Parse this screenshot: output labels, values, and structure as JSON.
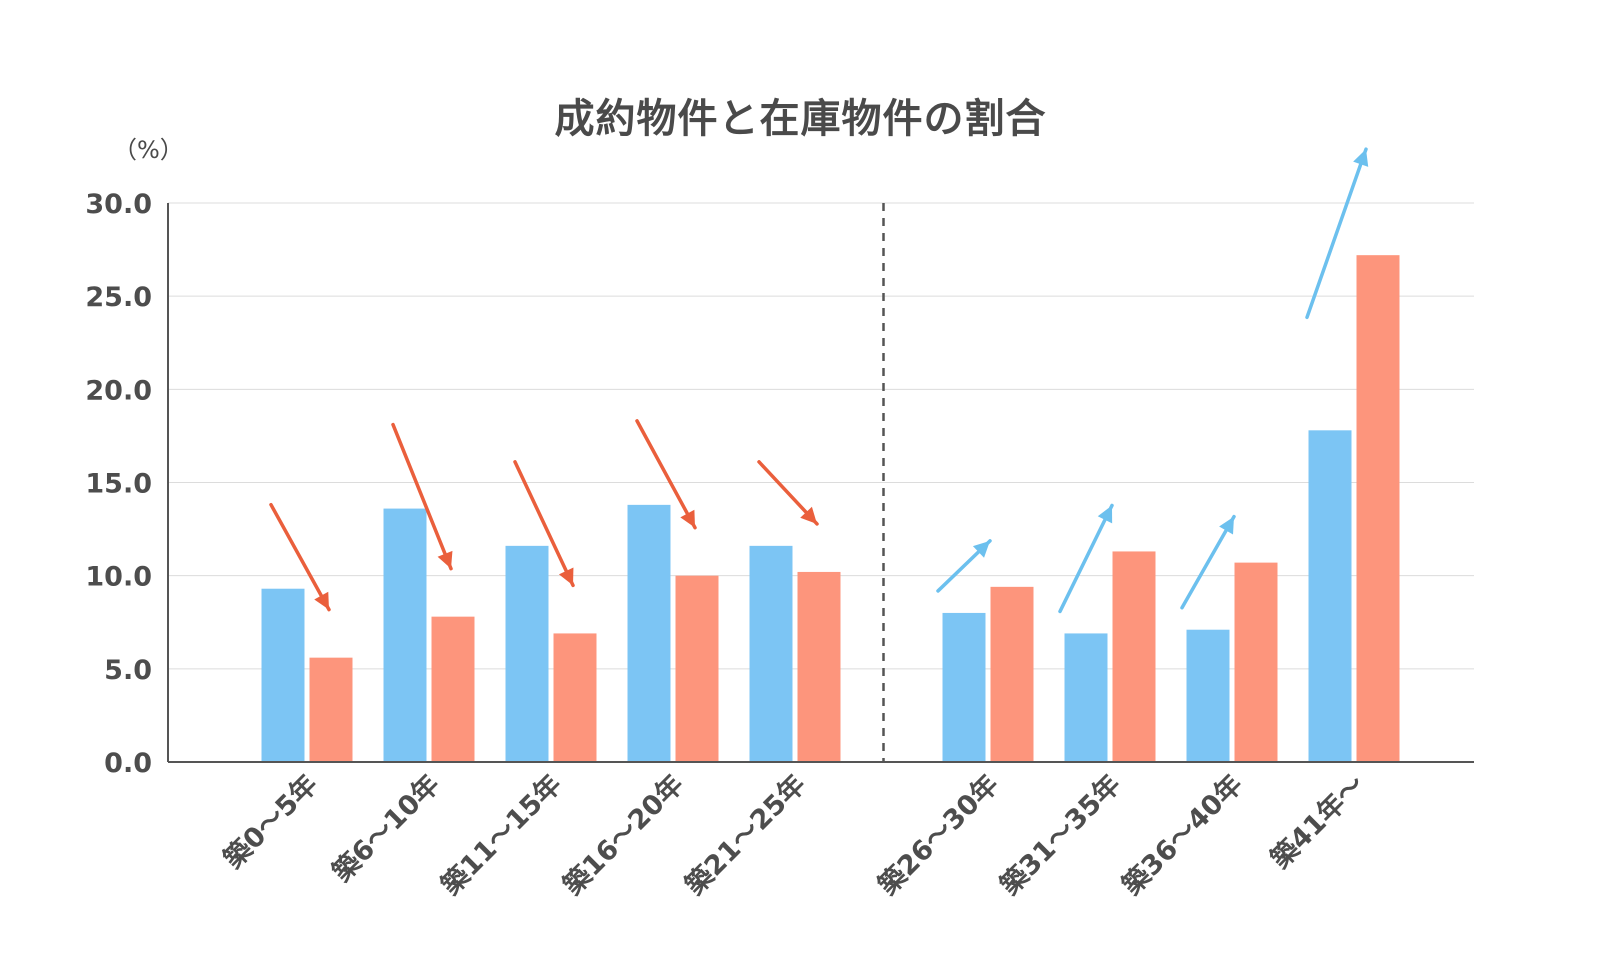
{
  "chart_data": {
    "type": "bar",
    "title": "成約物件と在庫物件の割合",
    "ylabel": "（%）",
    "xlabel": "",
    "ylim": [
      0,
      30
    ],
    "yticks": [
      "0.0",
      "5.0",
      "10.0",
      "15.0",
      "20.0",
      "25.0",
      "30.0"
    ],
    "categories": [
      "築0～5年",
      "築6～10年",
      "築11～15年",
      "築16～20年",
      "築21～25年",
      "築26～30年",
      "築31～35年",
      "築36～40年",
      "築41年～"
    ],
    "series": [
      {
        "color": "#7cc5f4",
        "values": [
          9.3,
          13.6,
          11.6,
          13.8,
          11.6,
          8.0,
          6.9,
          7.1,
          17.8
        ]
      },
      {
        "color": "#fd957c",
        "values": [
          5.6,
          7.8,
          6.9,
          10.0,
          10.2,
          9.4,
          11.3,
          10.7,
          27.2
        ]
      }
    ],
    "grid": true,
    "legend": "none",
    "annotations": {
      "divider_after_category": 4,
      "trend_arrows": [
        {
          "category": "築0～5年",
          "direction": "down",
          "color": "#ea5f3c"
        },
        {
          "category": "築6～10年",
          "direction": "down",
          "color": "#ea5f3c"
        },
        {
          "category": "築11～15年",
          "direction": "down",
          "color": "#ea5f3c"
        },
        {
          "category": "築16～20年",
          "direction": "down",
          "color": "#ea5f3c"
        },
        {
          "category": "築21～25年",
          "direction": "down",
          "color": "#ea5f3c"
        },
        {
          "category": "築26～30年",
          "direction": "up",
          "color": "#6cc0ee"
        },
        {
          "category": "築31～35年",
          "direction": "up",
          "color": "#6cc0ee"
        },
        {
          "category": "築36～40年",
          "direction": "up",
          "color": "#6cc0ee"
        },
        {
          "category": "築41年～",
          "direction": "up",
          "color": "#6cc0ee"
        }
      ]
    }
  }
}
